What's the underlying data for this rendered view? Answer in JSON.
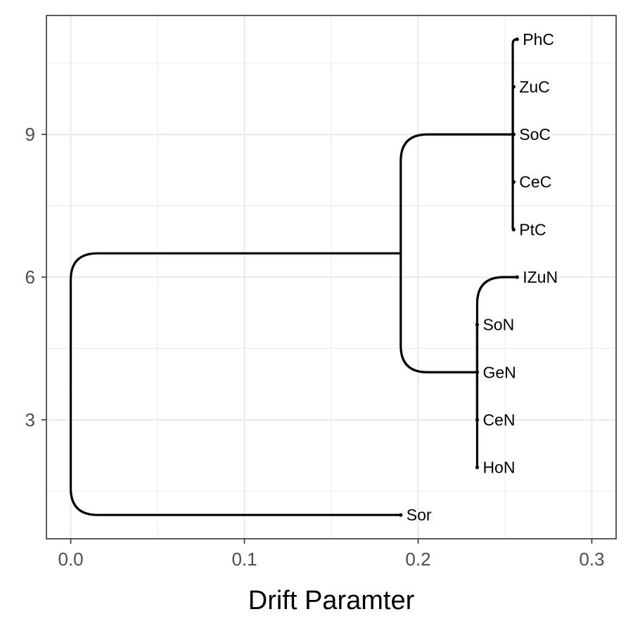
{
  "chart_data": {
    "type": "tree",
    "title": "",
    "xlabel": "Drift Paramter",
    "ylabel": "",
    "xlim": [
      -0.014,
      0.314
    ],
    "ylim": [
      0.5,
      11.5
    ],
    "xticks": [
      0.0,
      0.1,
      0.2,
      0.3
    ],
    "xtick_labels": [
      "0.0",
      "0.1",
      "0.2",
      "0.3"
    ],
    "yticks": [
      3,
      6,
      9
    ],
    "ytick_labels": [
      "3",
      "6",
      "9"
    ],
    "grid": true,
    "tips": [
      {
        "name": "Sor",
        "x": 0.19,
        "y": 1
      },
      {
        "name": "HoN",
        "x": 0.234,
        "y": 2
      },
      {
        "name": "CeN",
        "x": 0.234,
        "y": 3
      },
      {
        "name": "GeN",
        "x": 0.234,
        "y": 4
      },
      {
        "name": "SoN",
        "x": 0.234,
        "y": 5
      },
      {
        "name": "IZuN",
        "x": 0.257,
        "y": 6
      },
      {
        "name": "PtC",
        "x": 0.255,
        "y": 7
      },
      {
        "name": "CeC",
        "x": 0.255,
        "y": 8
      },
      {
        "name": "SoC",
        "x": 0.255,
        "y": 9
      },
      {
        "name": "ZuC",
        "x": 0.255,
        "y": 10
      },
      {
        "name": "PhC",
        "x": 0.257,
        "y": 11
      }
    ],
    "nodes": [
      {
        "id": "root",
        "x": 0.0
      },
      {
        "id": "n_main",
        "x": 0.19
      },
      {
        "id": "n_N",
        "x": 0.234
      },
      {
        "id": "n_C",
        "x": 0.2545
      }
    ],
    "edges": [
      {
        "from": "root",
        "to": "tip:Sor"
      },
      {
        "from": "root",
        "to": "n_main"
      },
      {
        "from": "n_main",
        "to": "n_N"
      },
      {
        "from": "n_main",
        "to": "n_C"
      },
      {
        "from": "n_N",
        "to": "tip:HoN"
      },
      {
        "from": "n_N",
        "to": "tip:CeN"
      },
      {
        "from": "n_N",
        "to": "tip:GeN"
      },
      {
        "from": "n_N",
        "to": "tip:SoN"
      },
      {
        "from": "n_N",
        "to": "tip:IZuN"
      },
      {
        "from": "n_C",
        "to": "tip:PtC"
      },
      {
        "from": "n_C",
        "to": "tip:CeC"
      },
      {
        "from": "n_C",
        "to": "tip:SoC"
      },
      {
        "from": "n_C",
        "to": "tip:ZuC"
      },
      {
        "from": "n_C",
        "to": "tip:PhC"
      }
    ]
  }
}
